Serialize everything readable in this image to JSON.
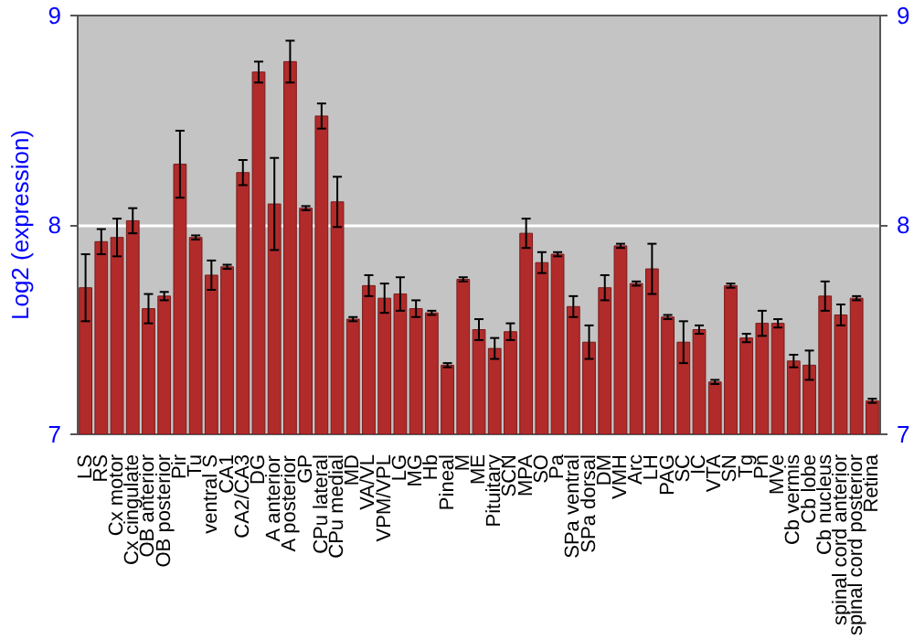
{
  "chart_data": {
    "type": "bar",
    "ylabel": "Log2 (expression)",
    "categories": [
      "LS",
      "RS",
      "Cx motor",
      "Cx cingulate",
      "OB anterior",
      "OB posterior",
      "Pir",
      "Tu",
      "ventral S",
      "CA1",
      "CA2/CA3",
      "DG",
      "A anterior",
      "A posterior",
      "GP",
      "CPu lateral",
      "CPu medial",
      "MD",
      "VA/VL",
      "VPM/VPL",
      "LG",
      "MG",
      "Hb",
      "Pineal",
      "M",
      "ME",
      "Pituitary",
      "SCN",
      "MPA",
      "SO",
      "Pa",
      "SPa ventral",
      "SPa dorsal",
      "DM",
      "VMH",
      "Arc",
      "LH",
      "PAG",
      "SC",
      "IC",
      "VTA",
      "SN",
      "Tg",
      "Pn",
      "MVe",
      "Cb vermis",
      "Cb lobe",
      "Cb nucleus",
      "spinal cord anterior",
      "spinal cord posterior",
      "Retina"
    ],
    "values": [
      7.7,
      7.92,
      7.94,
      8.02,
      7.6,
      7.66,
      8.29,
      7.94,
      7.76,
      7.8,
      8.25,
      8.73,
      8.1,
      8.78,
      8.08,
      8.52,
      8.11,
      7.55,
      7.71,
      7.65,
      7.67,
      7.6,
      7.58,
      7.33,
      7.74,
      7.5,
      7.41,
      7.49,
      7.96,
      7.82,
      7.86,
      7.61,
      7.44,
      7.7,
      7.9,
      7.72,
      7.79,
      7.56,
      7.44,
      7.5,
      7.25,
      7.71,
      7.46,
      7.53,
      7.53,
      7.35,
      7.33,
      7.66,
      7.57,
      7.65,
      7.16
    ],
    "errors": [
      0.16,
      0.06,
      0.09,
      0.06,
      0.07,
      0.02,
      0.16,
      0.01,
      0.07,
      0.01,
      0.06,
      0.05,
      0.22,
      0.1,
      0.01,
      0.06,
      0.12,
      0.01,
      0.05,
      0.07,
      0.08,
      0.04,
      0.01,
      0.01,
      0.01,
      0.05,
      0.05,
      0.04,
      0.07,
      0.05,
      0.01,
      0.05,
      0.08,
      0.06,
      0.01,
      0.01,
      0.12,
      0.01,
      0.1,
      0.02,
      0.01,
      0.01,
      0.02,
      0.06,
      0.02,
      0.03,
      0.07,
      0.07,
      0.05,
      0.01,
      0.01
    ],
    "color": "#b12b2b",
    "ylim": [
      7,
      9
    ],
    "yticks": [
      7,
      8,
      9
    ],
    "y2lim": [
      7,
      9
    ],
    "y2ticks": [
      7,
      8,
      9
    ],
    "grid": "y"
  }
}
